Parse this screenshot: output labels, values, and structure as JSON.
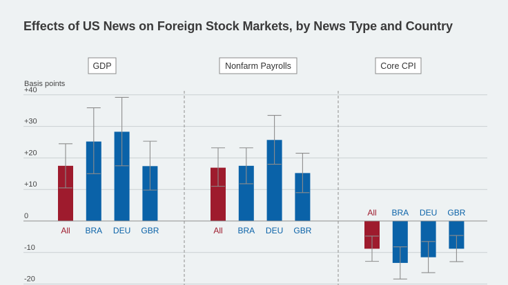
{
  "title": "Effects of US News on Foreign Stock Markets, by News Type and Country",
  "colors": {
    "all": "#9e1b2d",
    "country": "#0a62a8",
    "all_label": "#9e1b2d",
    "country_label": "#0a62a8"
  },
  "chart_data": {
    "type": "bar",
    "title": "Effects of US News on Foreign Stock Markets, by News Type and Country",
    "ylabel": "Basis points",
    "ylim": [
      -20,
      40
    ],
    "yticks": [
      "+40",
      "+30",
      "+20",
      "+10",
      "0",
      "-10",
      "-20"
    ],
    "ytick_values": [
      40,
      30,
      20,
      10,
      0,
      -10,
      -20
    ],
    "grid": true,
    "panels": [
      {
        "name": "GDP",
        "categories": [
          "All",
          "BRA",
          "DEU",
          "GBR"
        ],
        "values": [
          17.5,
          25.2,
          28.3,
          17.4
        ],
        "error_low": [
          10.5,
          15.0,
          17.5,
          9.8
        ],
        "error_high": [
          24.5,
          35.9,
          39.2,
          25.3
        ]
      },
      {
        "name": "Nonfarm Payrolls",
        "categories": [
          "All",
          "BRA",
          "DEU",
          "GBR"
        ],
        "values": [
          16.9,
          17.5,
          25.7,
          15.2
        ],
        "error_low": [
          11.0,
          11.8,
          18.0,
          9.0
        ],
        "error_high": [
          23.2,
          23.2,
          33.5,
          21.5
        ]
      },
      {
        "name": "Core CPI",
        "categories": [
          "All",
          "BRA",
          "DEU",
          "GBR"
        ],
        "values": [
          -8.8,
          -13.3,
          -11.5,
          -8.8
        ],
        "error_low": [
          -12.8,
          -18.4,
          -16.4,
          -12.9
        ],
        "error_high": [
          -4.8,
          -8.2,
          -6.5,
          -4.6
        ]
      }
    ]
  }
}
